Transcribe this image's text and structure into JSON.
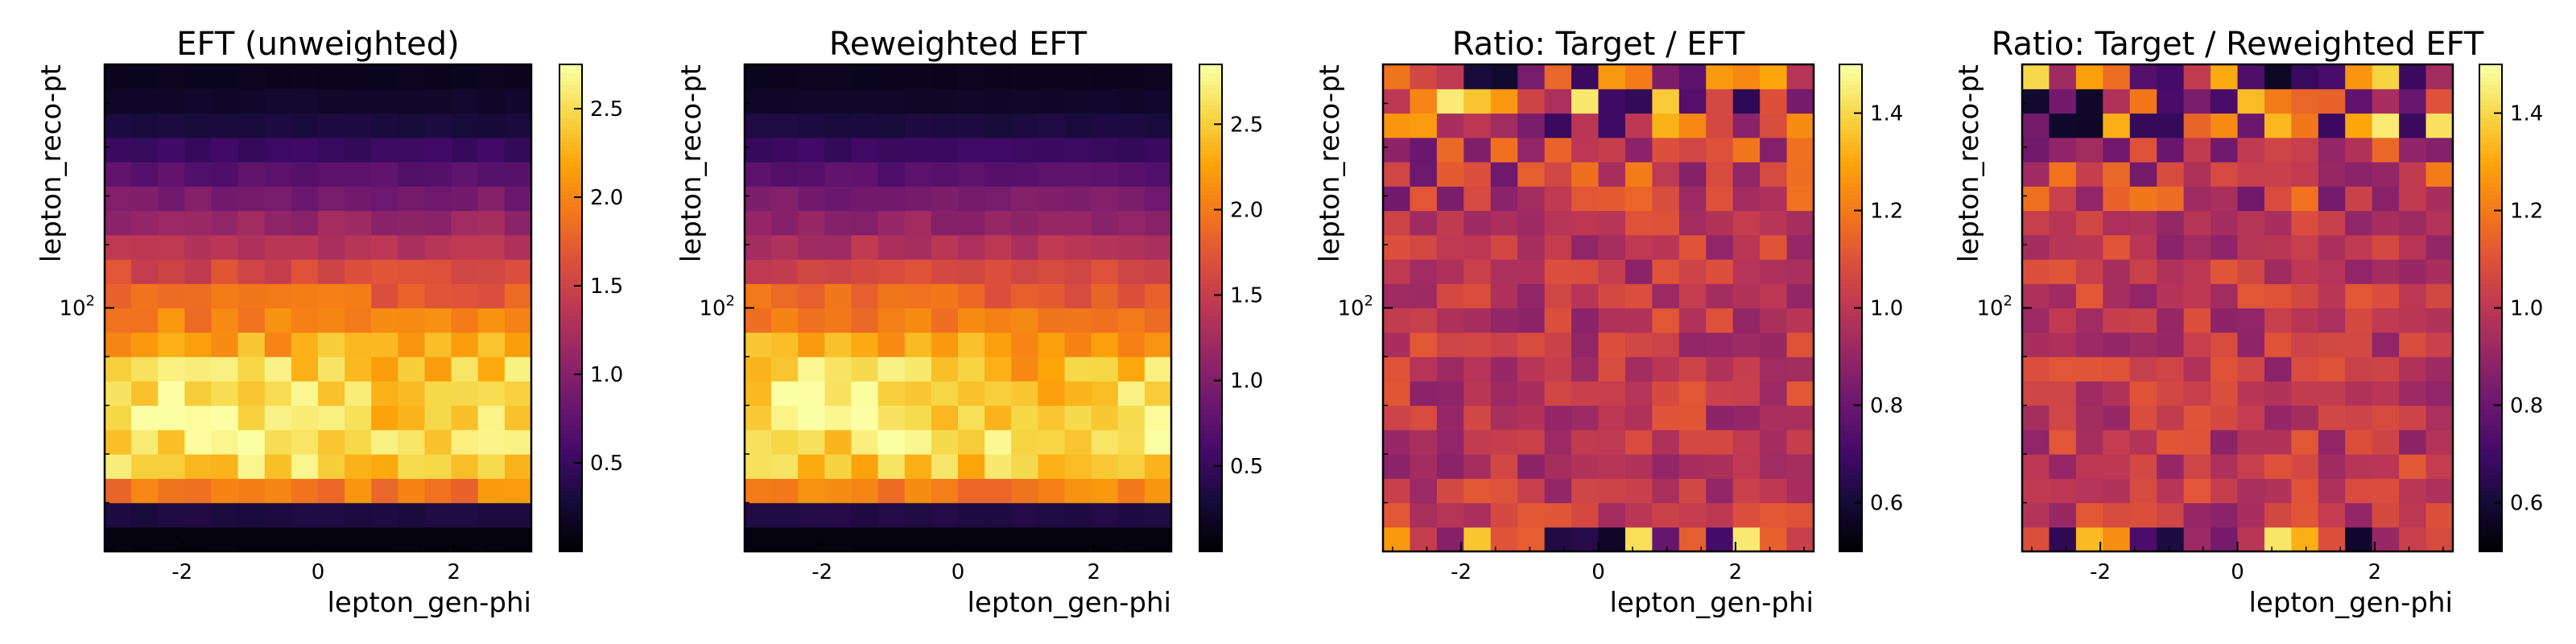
{
  "chart_data": [
    {
      "type": "heatmap",
      "title": "EFT (unweighted)",
      "xlabel": "lepton_gen-phi",
      "ylabel": "lepton_reco-pt",
      "xticks": [
        "-2",
        "0",
        "2"
      ],
      "xtick_values": [
        -2,
        0,
        2
      ],
      "yticks": [
        "10",
        "2"
      ],
      "ytick_exponent": "2",
      "xlim": [
        -3.14,
        3.14
      ],
      "colormap": "inferno",
      "colorbar": {
        "range": [
          0.0,
          2.75
        ],
        "ticks": [
          "0.5",
          "1.0",
          "1.5",
          "2.0",
          "2.5"
        ],
        "tick_values": [
          0.5,
          1.0,
          1.5,
          2.0,
          2.5
        ]
      },
      "grid": false,
      "nx": 16,
      "ny": 20,
      "row_profile": [
        0.06,
        0.32,
        1.95,
        2.45,
        2.58,
        2.55,
        2.5,
        2.42,
        2.2,
        1.98,
        1.8,
        1.55,
        1.32,
        1.12,
        0.92,
        0.7,
        0.5,
        0.3,
        0.2,
        0.14
      ],
      "noise": 0.1,
      "bright_rows": [
        5,
        6,
        7
      ]
    },
    {
      "type": "heatmap",
      "title": "Reweighted EFT",
      "xlabel": "lepton_gen-phi",
      "ylabel": "lepton_reco-pt",
      "xticks": [
        "-2",
        "0",
        "2"
      ],
      "xtick_values": [
        -2,
        0,
        2
      ],
      "yticks": [
        "10",
        "2"
      ],
      "ytick_exponent": "2",
      "xlim": [
        -3.14,
        3.14
      ],
      "colormap": "inferno",
      "colorbar": {
        "range": [
          0.0,
          2.85
        ],
        "ticks": [
          "0.5",
          "1.0",
          "1.5",
          "2.0",
          "2.5"
        ],
        "tick_values": [
          0.5,
          1.0,
          1.5,
          2.0,
          2.5
        ]
      },
      "grid": false,
      "nx": 16,
      "ny": 20,
      "row_profile": [
        0.06,
        0.35,
        2.0,
        2.5,
        2.62,
        2.6,
        2.55,
        2.48,
        2.25,
        2.02,
        1.82,
        1.58,
        1.34,
        1.14,
        0.94,
        0.72,
        0.52,
        0.32,
        0.2,
        0.14
      ],
      "noise": 0.1,
      "bright_rows": [
        5,
        6,
        7
      ]
    },
    {
      "type": "heatmap",
      "title": "Ratio: Target / EFT",
      "xlabel": "lepton_gen-phi",
      "ylabel": "lepton_reco-pt",
      "xticks": [
        "-2",
        "0",
        "2"
      ],
      "xtick_values": [
        -2,
        0,
        2
      ],
      "yticks": [
        "10",
        "2"
      ],
      "ytick_exponent": "2",
      "xlim": [
        -3.14,
        3.14
      ],
      "colormap": "inferno",
      "colorbar": {
        "range": [
          0.5,
          1.5
        ],
        "ticks": [
          "0.6",
          "0.8",
          "1.0",
          "1.2",
          "1.4"
        ],
        "tick_values": [
          0.6,
          0.8,
          1.0,
          1.2,
          1.4
        ]
      },
      "grid": false,
      "nx": 16,
      "ny": 20,
      "center": 1.0,
      "noise": 0.06,
      "edge_noise": {
        "bottom_rows": 1,
        "top_rows": 3,
        "amplitude": 0.45
      }
    },
    {
      "type": "heatmap",
      "title": "Ratio: Target / Reweighted EFT",
      "xlabel": "lepton_gen-phi",
      "ylabel": "lepton_reco-pt",
      "xticks": [
        "-2",
        "0",
        "2"
      ],
      "xtick_values": [
        -2,
        0,
        2
      ],
      "yticks": [
        "10",
        "2"
      ],
      "ytick_exponent": "2",
      "xlim": [
        -3.14,
        3.14
      ],
      "colormap": "inferno",
      "colorbar": {
        "range": [
          0.5,
          1.5
        ],
        "ticks": [
          "0.6",
          "0.8",
          "1.0",
          "1.2",
          "1.4"
        ],
        "tick_values": [
          0.6,
          0.8,
          1.0,
          1.2,
          1.4
        ]
      },
      "grid": false,
      "nx": 16,
      "ny": 20,
      "center": 1.0,
      "noise": 0.06,
      "edge_noise": {
        "bottom_rows": 1,
        "top_rows": 3,
        "amplitude": 0.45
      }
    }
  ]
}
